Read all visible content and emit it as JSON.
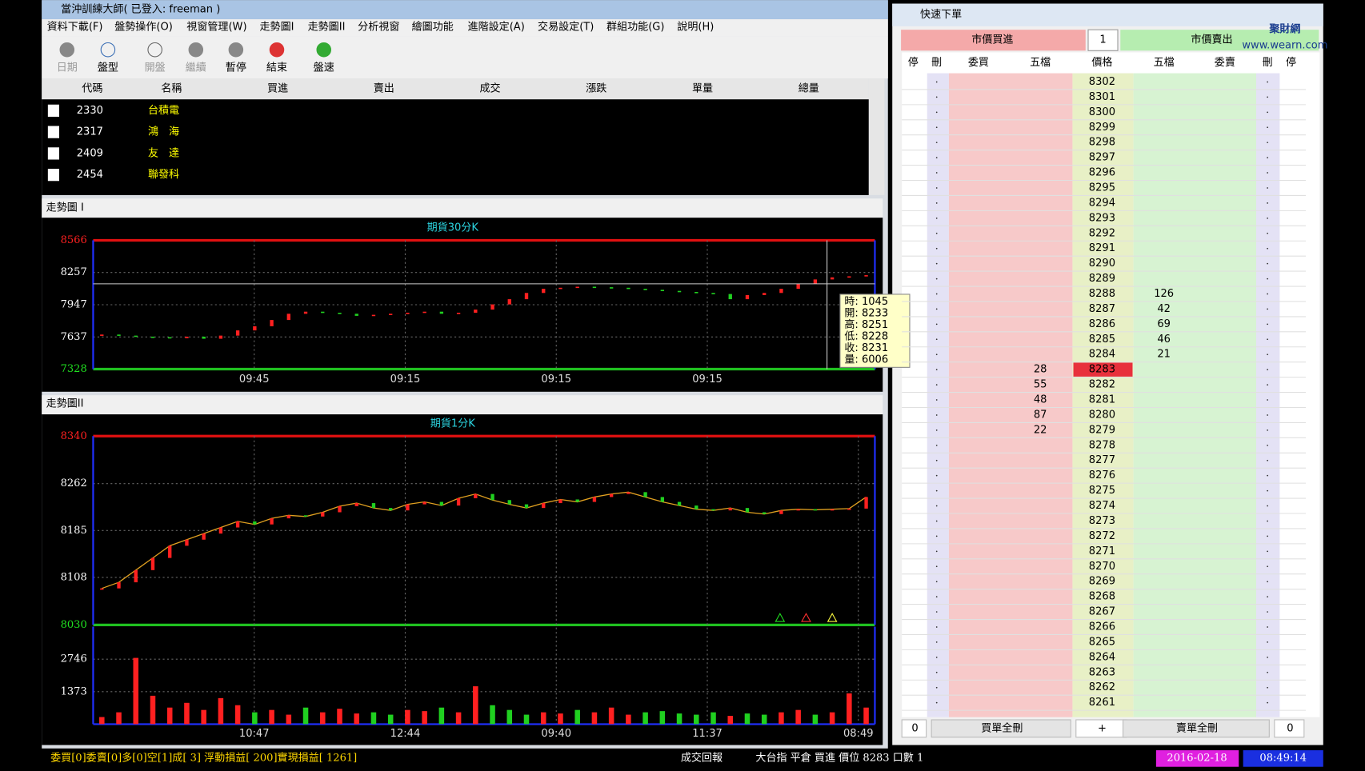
{
  "window": {
    "title": "當沖訓練大師( 已登入: freeman )"
  },
  "menu": [
    "資料下載(F)",
    "盤勢操作(O)",
    "視窗管理(W)",
    "走勢圖I",
    "走勢圖II",
    "分析視窗",
    "繪圖功能",
    "進階設定(A)",
    "交易設定(T)",
    "群組功能(G)",
    "說明(H)"
  ],
  "toolbar": [
    "日期",
    "盤型",
    "開盤",
    "繼續",
    "暫停",
    "結束",
    "盤速"
  ],
  "quote_table": {
    "headers": [
      "代碼",
      "名稱",
      "買進",
      "賣出",
      "成交",
      "漲跌",
      "單量",
      "總量"
    ],
    "rows": [
      [
        "2330",
        "台積電"
      ],
      [
        "2317",
        "鴻　海"
      ],
      [
        "2409",
        "友　達"
      ],
      [
        "2454",
        "聯發科"
      ]
    ]
  },
  "chart_data": [
    {
      "type": "candlestick",
      "panel_title": "走勢圖 I",
      "title": "期貨30分K",
      "ylim": [
        7328,
        8566
      ],
      "yticks": [
        8566,
        8257,
        7947,
        7637,
        7328
      ],
      "x_labels": [
        "09:45",
        "09:15",
        "09:15",
        "09:15"
      ],
      "values": [
        7660,
        7650,
        7640,
        7635,
        7625,
        7640,
        7620,
        7650,
        7700,
        7740,
        7800,
        7860,
        7880,
        7870,
        7860,
        7840,
        7850,
        7860,
        7870,
        7880,
        7860,
        7870,
        7900,
        7950,
        8000,
        8060,
        8100,
        8110,
        8120,
        8115,
        8110,
        8100,
        8090,
        8080,
        8070,
        8060,
        8050,
        8000,
        8040,
        8060,
        8100,
        8150,
        8190,
        8210,
        8220,
        8231
      ],
      "tooltip": [
        "時: 1045",
        "開: 8233",
        "高: 8251",
        "低: 8228",
        "收: 8231",
        "量: 6006"
      ]
    },
    {
      "type": "candlestick",
      "panel_title": "走勢圖II",
      "title": "期貨1分K",
      "ylim": [
        8030,
        8340
      ],
      "yticks": [
        8340,
        8262,
        8185,
        8108,
        8030
      ],
      "x_labels": [
        "10:47",
        "12:44",
        "09:40",
        "11:37",
        "08:49"
      ],
      "values": [
        8090,
        8100,
        8120,
        8140,
        8160,
        8170,
        8180,
        8190,
        8200,
        8195,
        8205,
        8210,
        8208,
        8215,
        8225,
        8230,
        8222,
        8218,
        8228,
        8232,
        8226,
        8238,
        8245,
        8235,
        8228,
        8222,
        8230,
        8236,
        8232,
        8240,
        8245,
        8248,
        8240,
        8232,
        8226,
        8220,
        8218,
        8222,
        8215,
        8212,
        8218,
        8220,
        8219,
        8220,
        8221,
        8240
      ],
      "volume": {
        "ylim": [
          0,
          4119
        ],
        "yticks": [
          2746,
          1373
        ],
        "values": [
          300,
          500,
          2800,
          1200,
          700,
          900,
          600,
          1100,
          800,
          500,
          600,
          400,
          700,
          500,
          650,
          450,
          500,
          400,
          600,
          550,
          700,
          500,
          1600,
          800,
          600,
          400,
          500,
          450,
          600,
          500,
          700,
          400,
          500,
          550,
          450,
          400,
          500,
          350,
          450,
          400,
          500,
          600,
          400,
          500,
          1300,
          700
        ]
      }
    }
  ],
  "order": {
    "title": "快速下單",
    "buy_button": "市價買進",
    "qty": "1",
    "sell_button": "市價賣出",
    "logo": "聚財網",
    "logo_url": "www.wearn.com",
    "headers": [
      "停",
      "刪",
      "委買",
      "五檔",
      "價格",
      "五檔",
      "委賣",
      "刪",
      "停"
    ],
    "prices": [
      8302,
      8301,
      8300,
      8299,
      8298,
      8297,
      8296,
      8295,
      8294,
      8293,
      8292,
      8291,
      8290,
      8289,
      8288,
      8287,
      8286,
      8285,
      8284,
      8283,
      8282,
      8281,
      8280,
      8279,
      8278,
      8277,
      8276,
      8275,
      8274,
      8273,
      8272,
      8271,
      8270,
      8269,
      8268,
      8267,
      8266,
      8265,
      8264,
      8263,
      8262,
      8261
    ],
    "bid_sizes": [
      null,
      null,
      null,
      null,
      null,
      null,
      null,
      null,
      null,
      null,
      null,
      null,
      null,
      null,
      null,
      null,
      null,
      null,
      null,
      28,
      55,
      48,
      87,
      22,
      null,
      null,
      null,
      null,
      null,
      null,
      null,
      null,
      null,
      null,
      null,
      null,
      null,
      null,
      null,
      null,
      null,
      null
    ],
    "ask_sizes": [
      null,
      null,
      null,
      null,
      null,
      null,
      null,
      null,
      null,
      null,
      null,
      null,
      null,
      null,
      126,
      42,
      69,
      46,
      21,
      null,
      null,
      null,
      null,
      null,
      null,
      null,
      null,
      null,
      null,
      null,
      null,
      null,
      null,
      null,
      null,
      null,
      null,
      null,
      null,
      null,
      null,
      null
    ],
    "current_index": 19,
    "footer": [
      "0",
      "買單全刪",
      "+",
      "賣單全刪",
      "0"
    ]
  },
  "status": {
    "account": "委買[0]委賣[0]多[0]空[1]成[ 3]  浮動損益[  200]實現損益[ 1261]",
    "report": "成交回報",
    "message": "大台指 平倉 買進 價位 8283 口數 1",
    "date": "2016-02-18",
    "time": "08:49:14"
  }
}
